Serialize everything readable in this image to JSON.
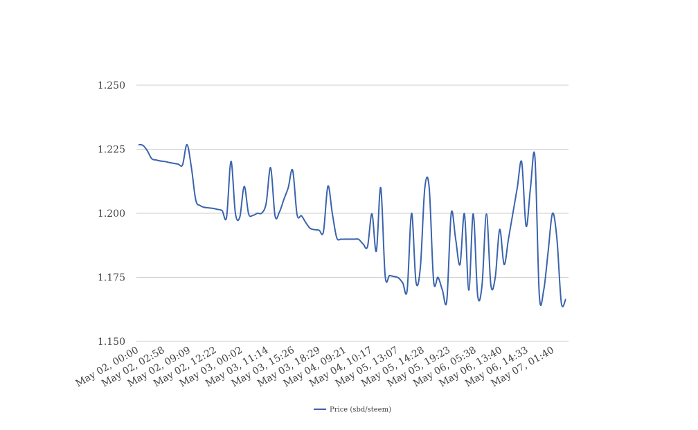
{
  "chart_data": {
    "type": "line",
    "title": "",
    "xlabel": "",
    "ylabel": "",
    "ylim": [
      1.15,
      1.25
    ],
    "y_ticks": [
      "1.250",
      "1.225",
      "1.200",
      "1.175",
      "1.150"
    ],
    "x_tick_labels": [
      "May 02, 00:00",
      "May 02, 02:58",
      "May 02, 09:09",
      "May 02, 12:22",
      "May 03, 00:02",
      "May 03, 11:14",
      "May 03, 15:26",
      "May 03, 18:29",
      "May 04, 09:21",
      "May 04, 10:17",
      "May 05, 13:07",
      "May 05, 14:28",
      "May 05, 19:23",
      "May 06, 05:38",
      "May 06, 13:40",
      "May 06, 14:33",
      "May 07, 01:40"
    ],
    "grid": true,
    "legend_position": "bottom",
    "line_color": "#3a63ad",
    "series": [
      {
        "name": "Price (sbd/steem)",
        "values": [
          1.2268,
          1.2265,
          1.2244,
          1.2213,
          1.2208,
          1.2204,
          1.2202,
          1.2198,
          1.2195,
          1.2192,
          1.2189,
          1.2268,
          1.218,
          1.2052,
          1.203,
          1.2023,
          1.2021,
          1.2019,
          1.2015,
          1.201,
          1.1985,
          1.2203,
          1.2,
          1.1985,
          1.2105,
          1.1998,
          1.1992,
          1.2,
          1.2001,
          1.204,
          1.2178,
          1.199,
          1.2005,
          1.2054,
          1.21,
          1.2168,
          1.1995,
          1.199,
          1.1963,
          1.1941,
          1.1936,
          1.1934,
          1.1929,
          1.2106,
          1.2,
          1.1905,
          1.1899,
          1.1899,
          1.1899,
          1.1899,
          1.1898,
          1.188,
          1.187,
          1.1998,
          1.1852,
          1.21,
          1.1756,
          1.1757,
          1.1753,
          1.1748,
          1.1728,
          1.17,
          1.2,
          1.1732,
          1.179,
          1.2098,
          1.21,
          1.1736,
          1.175,
          1.17,
          1.166,
          1.2,
          1.19,
          1.18,
          1.1998,
          1.17,
          1.1998,
          1.168,
          1.172,
          1.1997,
          1.172,
          1.175,
          1.1937,
          1.18,
          1.19,
          1.2,
          1.21,
          1.22,
          1.195,
          1.21,
          1.222,
          1.168,
          1.17,
          1.185,
          1.2,
          1.19,
          1.165,
          1.1665
        ]
      }
    ]
  }
}
